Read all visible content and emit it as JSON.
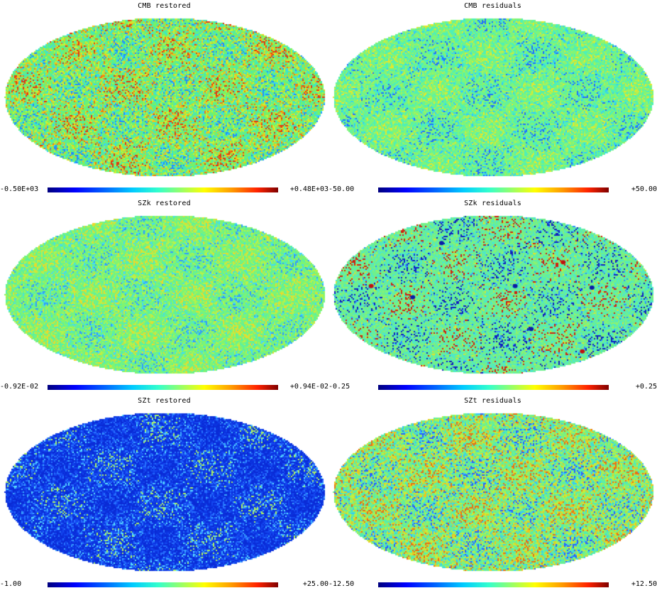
{
  "panels": [
    {
      "title": "CMB restored",
      "min": "-0.50E+03",
      "max": "+0.48E+03",
      "palette": [
        "#1f8fff",
        "#33d2ff",
        "#3be8c4",
        "#5ff08a",
        "#7cf35d",
        "#c8f235",
        "#f2c21a",
        "#f07a10",
        "#e03a10"
      ],
      "weights": [
        3,
        6,
        12,
        22,
        20,
        14,
        10,
        6,
        2
      ],
      "spots": []
    },
    {
      "title": "CMB residuals",
      "min": "-50.00",
      "max": "+50.00",
      "palette": [
        "#1f70ff",
        "#30c8ff",
        "#4ef0b8",
        "#7cf57a",
        "#a6f25a",
        "#e4e82a"
      ],
      "weights": [
        3,
        8,
        30,
        38,
        14,
        4
      ],
      "spots": []
    },
    {
      "title": "SZk restored",
      "min": "-0.92E-02",
      "max": "+0.94E-02",
      "palette": [
        "#2f9cff",
        "#40d6ff",
        "#5cf0a0",
        "#80f470",
        "#b5f24a",
        "#ecd82a"
      ],
      "weights": [
        3,
        8,
        28,
        34,
        18,
        6
      ],
      "spots": []
    },
    {
      "title": "SZk residuals",
      "min": "-0.25",
      "max": "+0.25",
      "palette": [
        "#1020c0",
        "#2f90ff",
        "#4ee8c8",
        "#6ff08c",
        "#8ef36e",
        "#e4e02a",
        "#d02010"
      ],
      "weights": [
        4,
        5,
        30,
        40,
        14,
        3,
        3
      ],
      "spots": [
        [
          "#0b1aa8",
          0.34,
          0.18
        ],
        [
          "#0b1aa8",
          0.57,
          0.45
        ],
        [
          "#0b1aa8",
          0.81,
          0.46
        ],
        [
          "#0b1aa8",
          0.62,
          0.72
        ],
        [
          "#c01010",
          0.72,
          0.3
        ],
        [
          "#c01010",
          0.78,
          0.86
        ],
        [
          "#0b1aa8",
          0.25,
          0.52
        ],
        [
          "#c01010",
          0.12,
          0.45
        ]
      ]
    },
    {
      "title": "SZt restored",
      "min": "-1.00",
      "max": "+25.00",
      "palette": [
        "#0a2bd6",
        "#0b33e0",
        "#1448f0",
        "#2670ff",
        "#3aa8ff",
        "#5ae0ff",
        "#aef260"
      ],
      "weights": [
        26,
        26,
        22,
        12,
        7,
        5,
        2
      ],
      "spots": []
    },
    {
      "title": "SZt residuals",
      "min": "-12.50",
      "max": "+12.50",
      "palette": [
        "#2a60ff",
        "#33c4ff",
        "#52ecb4",
        "#7ef27a",
        "#c4ee3c",
        "#f0c41c",
        "#e87014"
      ],
      "weights": [
        4,
        9,
        24,
        28,
        18,
        11,
        6
      ],
      "spots": []
    }
  ],
  "colors": {
    "background": "#ffffff",
    "outside": "#ffffff"
  }
}
